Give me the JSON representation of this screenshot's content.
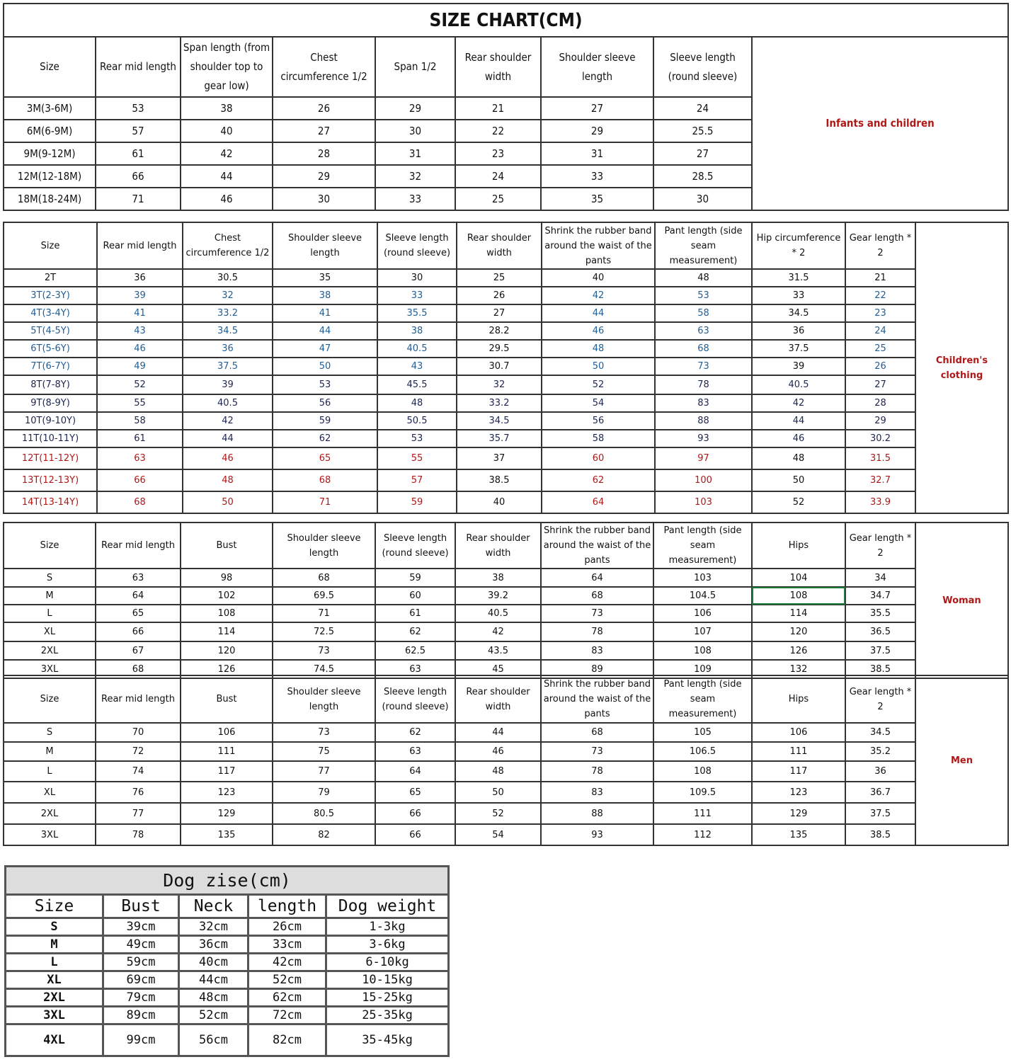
{
  "infants": {
    "title": "SIZE CHART(CM)",
    "label": "Infants and children",
    "headers": [
      "Size",
      "Rear mid length",
      "Span length (from shoulder top to gear low)",
      "Chest circumference 1/2",
      "Span 1/2",
      "Rear shoulder width",
      "Shoulder sleeve length",
      "Sleeve length (round sleeve)"
    ],
    "rows": [
      [
        "3M(3-6M)",
        "53",
        "38",
        "26",
        "29",
        "21",
        "27",
        "24"
      ],
      [
        "6M(6-9M)",
        "57",
        "40",
        "27",
        "30",
        "22",
        "29",
        "25.5"
      ],
      [
        "9M(9-12M)",
        "61",
        "42",
        "28",
        "31",
        "23",
        "31",
        "27"
      ],
      [
        "12M(12-18M)",
        "66",
        "44",
        "29",
        "32",
        "24",
        "33",
        "28.5"
      ],
      [
        "18M(18-24M)",
        "71",
        "46",
        "30",
        "33",
        "25",
        "35",
        "30"
      ]
    ]
  },
  "children": {
    "label": "Children's clothing",
    "headers": [
      "Size",
      "Rear mid length",
      "Chest circumference 1/2",
      "Shoulder sleeve length",
      "Sleeve length (round sleeve)",
      "Rear shoulder width",
      "Shrink the rubber band around the waist of the pants",
      "Pant length (side seam measurement)",
      "Hip circumference * 2",
      "Gear length * 2"
    ],
    "rows": [
      {
        "tone": "black",
        "cells": [
          "2T",
          "36",
          "30.5",
          "35",
          "30",
          "25",
          "40",
          "48",
          "31.5",
          "21"
        ]
      },
      {
        "tone": "blue",
        "cells": [
          "3T(2-3Y)",
          "39",
          "32",
          "38",
          "33",
          "26",
          "42",
          "53",
          "33",
          "22"
        ]
      },
      {
        "tone": "blue",
        "cells": [
          "4T(3-4Y)",
          "41",
          "33.2",
          "41",
          "35.5",
          "27",
          "44",
          "58",
          "34.5",
          "23"
        ]
      },
      {
        "tone": "blue",
        "cells": [
          "5T(4-5Y)",
          "43",
          "34.5",
          "44",
          "38",
          "28.2",
          "46",
          "63",
          "36",
          "24"
        ]
      },
      {
        "tone": "blue",
        "cells": [
          "6T(5-6Y)",
          "46",
          "36",
          "47",
          "40.5",
          "29.5",
          "48",
          "68",
          "37.5",
          "25"
        ]
      },
      {
        "tone": "blue",
        "cells": [
          "7T(6-7Y)",
          "49",
          "37.5",
          "50",
          "43",
          "30.7",
          "50",
          "73",
          "39",
          "26"
        ]
      },
      {
        "tone": "navy",
        "cells": [
          "8T(7-8Y)",
          "52",
          "39",
          "53",
          "45.5",
          "32",
          "52",
          "78",
          "40.5",
          "27"
        ]
      },
      {
        "tone": "navy",
        "cells": [
          "9T(8-9Y)",
          "55",
          "40.5",
          "56",
          "48",
          "33.2",
          "54",
          "83",
          "42",
          "28"
        ]
      },
      {
        "tone": "navy",
        "cells": [
          "10T(9-10Y)",
          "58",
          "42",
          "59",
          "50.5",
          "34.5",
          "56",
          "88",
          "44",
          "29"
        ]
      },
      {
        "tone": "navy",
        "cells": [
          "11T(10-11Y)",
          "61",
          "44",
          "62",
          "53",
          "35.7",
          "58",
          "93",
          "46",
          "30.2"
        ]
      },
      {
        "tone": "red",
        "cells": [
          "12T(11-12Y)",
          "63",
          "46",
          "65",
          "55",
          "37",
          "60",
          "97",
          "48",
          "31.5"
        ]
      },
      {
        "tone": "red",
        "cells": [
          "13T(12-13Y)",
          "66",
          "48",
          "68",
          "57",
          "38.5",
          "62",
          "100",
          "50",
          "32.7"
        ]
      },
      {
        "tone": "red",
        "cells": [
          "14T(13-14Y)",
          "68",
          "50",
          "71",
          "59",
          "40",
          "64",
          "103",
          "52",
          "33.9"
        ]
      }
    ],
    "tone_colors": {
      "blue": "#1f5e96",
      "navy": "#1c2550",
      "red": "#b01818"
    }
  },
  "woman": {
    "label": "Woman",
    "headers": [
      "Size",
      "Rear mid length",
      "Bust",
      "Shoulder sleeve length",
      "Sleeve length (round sleeve)",
      "Rear shoulder width",
      "Shrink the rubber band around the waist of the pants",
      "Pant length (side seam measurement)",
      "Hips",
      "Gear length * 2"
    ],
    "rows": [
      [
        "S",
        "63",
        "98",
        "68",
        "59",
        "38",
        "64",
        "103",
        "104",
        "34"
      ],
      [
        "M",
        "64",
        "102",
        "69.5",
        "60",
        "39.2",
        "68",
        "104.5",
        "108",
        "34.7"
      ],
      [
        "L",
        "65",
        "108",
        "71",
        "61",
        "40.5",
        "73",
        "106",
        "114",
        "35.5"
      ],
      [
        "XL",
        "66",
        "114",
        "72.5",
        "62",
        "42",
        "78",
        "107",
        "120",
        "36.5"
      ],
      [
        "2XL",
        "67",
        "120",
        "73",
        "62.5",
        "43.5",
        "83",
        "108",
        "126",
        "37.5"
      ],
      [
        "3XL",
        "68",
        "126",
        "74.5",
        "63",
        "45",
        "89",
        "109",
        "132",
        "38.5"
      ]
    ]
  },
  "men": {
    "label": "Men",
    "headers": [
      "Size",
      "Rear mid length",
      "Bust",
      "Shoulder sleeve length",
      "Sleeve length (round sleeve)",
      "Rear shoulder width",
      "Shrink the rubber band around the waist of the pants",
      "Pant length (side seam measurement)",
      "Hips",
      "Gear length * 2"
    ],
    "rows": [
      [
        "S",
        "70",
        "106",
        "73",
        "62",
        "44",
        "68",
        "105",
        "106",
        "34.5"
      ],
      [
        "M",
        "72",
        "111",
        "75",
        "63",
        "46",
        "73",
        "106.5",
        "111",
        "35.2"
      ],
      [
        "L",
        "74",
        "117",
        "77",
        "64",
        "48",
        "78",
        "108",
        "117",
        "36"
      ],
      [
        "XL",
        "76",
        "123",
        "79",
        "65",
        "50",
        "83",
        "109.5",
        "123",
        "36.7"
      ],
      [
        "2XL",
        "77",
        "129",
        "80.5",
        "66",
        "52",
        "88",
        "111",
        "129",
        "37.5"
      ],
      [
        "3XL",
        "78",
        "135",
        "82",
        "66",
        "54",
        "93",
        "112",
        "135",
        "38.5"
      ]
    ]
  },
  "dog": {
    "title": "Dog zise(cm)",
    "headers": [
      "Size",
      "Bust",
      "Neck",
      "length",
      "Dog weight"
    ],
    "rows": [
      [
        "S",
        "39cm",
        "32cm",
        "26cm",
        "1-3kg"
      ],
      [
        "M",
        "49cm",
        "36cm",
        "33cm",
        "3-6kg"
      ],
      [
        "L",
        "59cm",
        "40cm",
        "42cm",
        "6-10kg"
      ],
      [
        "XL",
        "69cm",
        "44cm",
        "52cm",
        "10-15kg"
      ],
      [
        "2XL",
        "79cm",
        "48cm",
        "62cm",
        "15-25kg"
      ],
      [
        "3XL",
        "89cm",
        "52cm",
        "72cm",
        "25-35kg"
      ],
      [
        "4XL",
        "99cm",
        "56cm",
        "82cm",
        "35-45kg"
      ]
    ]
  }
}
